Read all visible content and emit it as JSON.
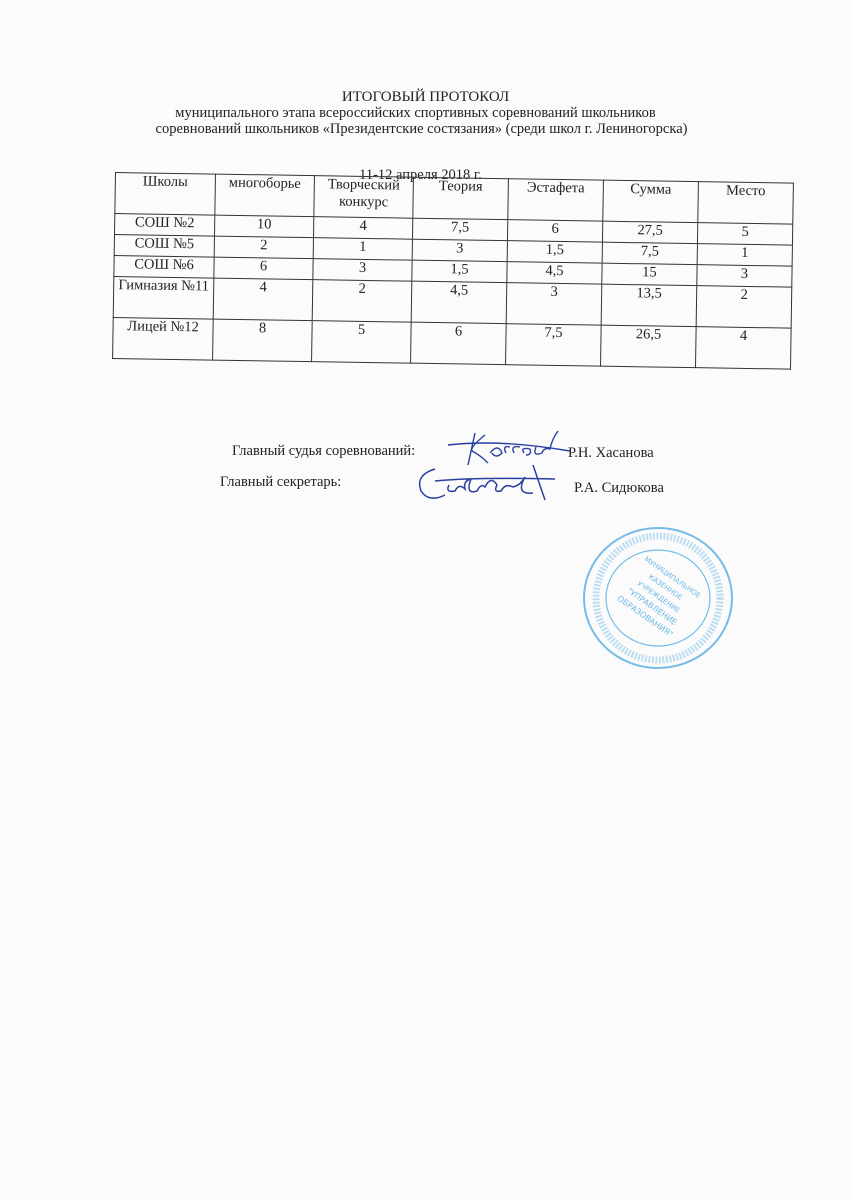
{
  "document": {
    "title": "ИТОГОВЫЙ ПРОТОКОЛ",
    "subtitle_line1": "муниципального этапа всероссийских спортивных соревнований школьников",
    "subtitle_line2": "соревнований школьников «Президентские состязания»  (среди школ г. Лениногорска)",
    "date": "11-12 апреля 2018 г."
  },
  "table": {
    "headers": [
      "Школы",
      "многоборье",
      "Творческий конкурс",
      "Теория",
      "Эстафета",
      "Сумма",
      "Место"
    ],
    "rows": [
      [
        "СОШ №2",
        "10",
        "4",
        "7,5",
        "6",
        "27,5",
        "5"
      ],
      [
        "СОШ №5",
        "2",
        "1",
        "3",
        "1,5",
        "7,5",
        "1"
      ],
      [
        "СОШ №6",
        "6",
        "3",
        "1,5",
        "4,5",
        "15",
        "3"
      ],
      [
        "Гимназия №11",
        "4",
        "2",
        "4,5",
        "3",
        "13,5",
        "2"
      ],
      [
        "Лицей №12",
        "8",
        "5",
        "6",
        "7,5",
        "26,5",
        "4"
      ]
    ]
  },
  "signatures": {
    "judge_label": "Главный судья соревнований:",
    "judge_name": "Р.Н. Хасанова",
    "secretary_label": "Главный секретарь:",
    "secretary_name": "Р.А. Сидюкова"
  },
  "stamp": {
    "center_text": "МУНИЦИПАЛЬНОЕ КАЗЕННОЕ УЧРЕЖДЕНИЕ \"УПРАВЛЕНИЕ ОБРАЗОВАНИЯ\"",
    "color": "#4aa8e0"
  },
  "ink_color": "#2a3fa0"
}
